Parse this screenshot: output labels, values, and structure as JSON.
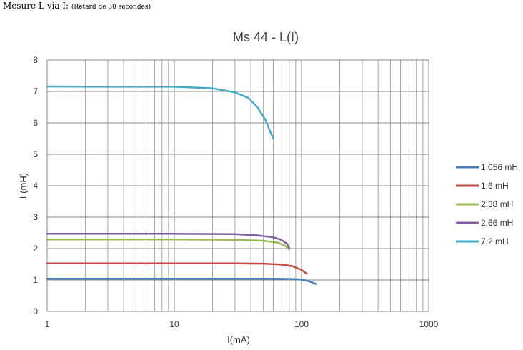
{
  "page_heading": {
    "main": "Mesure L via I:",
    "sub": "(Retard de 30 secondes)"
  },
  "chart_data": {
    "type": "line",
    "title": "Ms 44 - L(I)",
    "xlabel": "I(mA)",
    "ylabel": "L(mH)",
    "x_scale": "log",
    "xlim": [
      1,
      1000
    ],
    "ylim": [
      0,
      8
    ],
    "x_tick_labels": [
      "1",
      "10",
      "100",
      "1000"
    ],
    "y_tick_labels": [
      "0",
      "1",
      "2",
      "3",
      "4",
      "5",
      "6",
      "7",
      "8"
    ],
    "grid": true,
    "legend_position": "right",
    "series": [
      {
        "name": "1,056 mH",
        "color": "#4a7ebb",
        "x": [
          1,
          5,
          10,
          30,
          60,
          90,
          100,
          110,
          120,
          130
        ],
        "y": [
          1.04,
          1.04,
          1.04,
          1.04,
          1.04,
          1.03,
          1.01,
          0.98,
          0.93,
          0.87
        ]
      },
      {
        "name": "1,6 mH",
        "color": "#be4b48",
        "x": [
          1,
          5,
          10,
          30,
          50,
          70,
          85,
          100,
          110
        ],
        "y": [
          1.53,
          1.53,
          1.53,
          1.53,
          1.52,
          1.49,
          1.44,
          1.32,
          1.2
        ]
      },
      {
        "name": "2,38 mH",
        "color": "#98b954",
        "x": [
          1,
          5,
          10,
          30,
          50,
          65,
          75,
          80
        ],
        "y": [
          2.29,
          2.29,
          2.29,
          2.28,
          2.25,
          2.19,
          2.08,
          1.98
        ]
      },
      {
        "name": "2,66 mH",
        "color": "#7d5fa0",
        "x": [
          1,
          5,
          10,
          30,
          45,
          60,
          70,
          77,
          80
        ],
        "y": [
          2.47,
          2.47,
          2.47,
          2.46,
          2.42,
          2.36,
          2.27,
          2.15,
          2.02
        ]
      },
      {
        "name": "7,2 mH",
        "color": "#46aac5",
        "x": [
          1,
          3,
          10,
          20,
          30,
          38,
          45,
          52,
          57,
          60
        ],
        "y": [
          7.16,
          7.15,
          7.15,
          7.1,
          6.97,
          6.8,
          6.5,
          6.1,
          5.7,
          5.5
        ]
      }
    ]
  }
}
